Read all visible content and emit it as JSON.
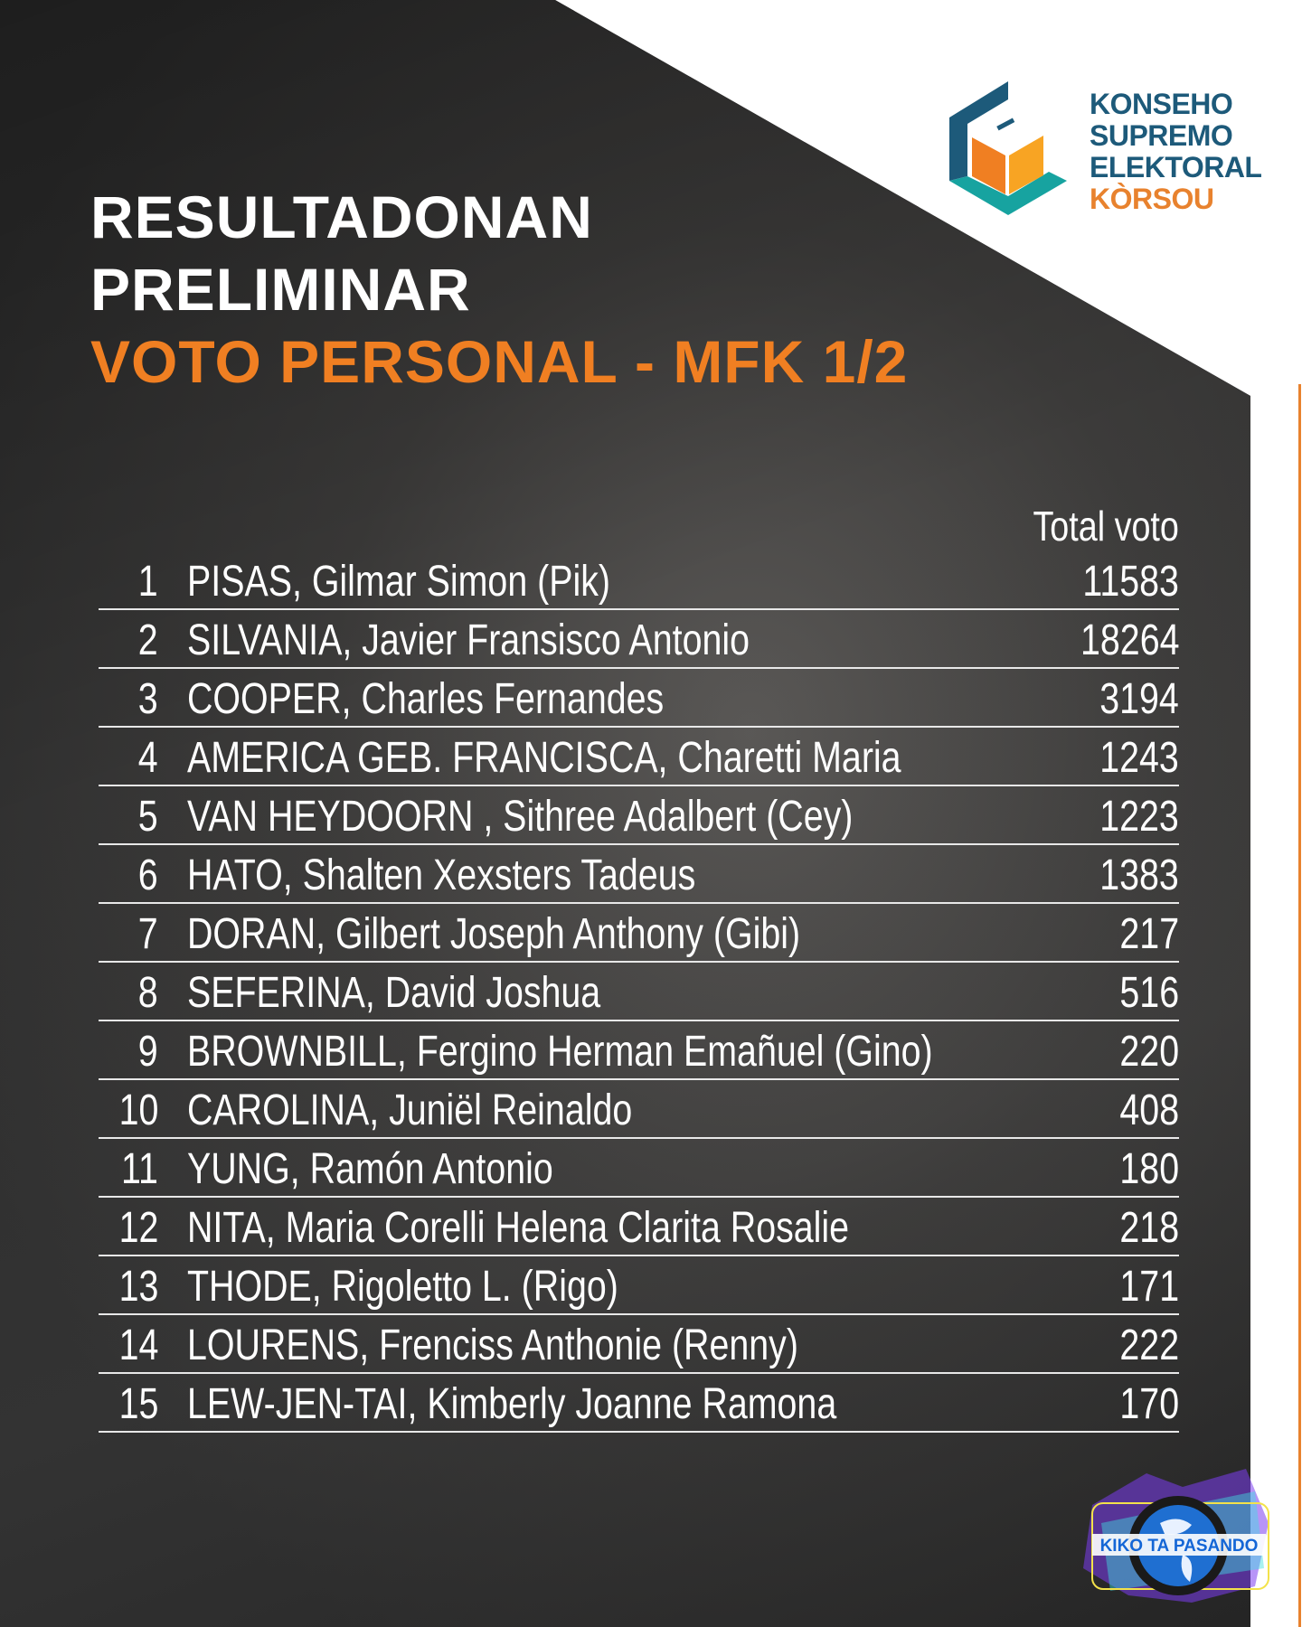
{
  "logo": {
    "lines": [
      "KONSEHO",
      "SUPREMO",
      "ELEKTORAL"
    ],
    "accent_line": "KÒRSOU",
    "colors": {
      "blue": "#1d5a7a",
      "orange": "#e8822e",
      "teal": "#17a3a0"
    }
  },
  "title": {
    "line1": "RESULTADONAN",
    "line2": "PRELIMINAR",
    "line3": "VOTO PERSONAL - MFK 1/2"
  },
  "table": {
    "column_header": "Total voto",
    "rows": [
      {
        "n": "1",
        "name": "PISAS, Gilmar Simon (Pik)",
        "votes": "11583"
      },
      {
        "n": "2",
        "name": "SILVANIA, Javier Fransisco Antonio",
        "votes": "18264"
      },
      {
        "n": "3",
        "name": "COOPER, Charles Fernandes",
        "votes": "3194"
      },
      {
        "n": "4",
        "name": "AMERICA GEB. FRANCISCA, Charetti Maria",
        "votes": "1243"
      },
      {
        "n": "5",
        "name": "VAN HEYDOORN , Sithree Adalbert (Cey)",
        "votes": "1223"
      },
      {
        "n": "6",
        "name": "HATO, Shalten Xexsters Tadeus",
        "votes": "1383"
      },
      {
        "n": "7",
        "name": "DORAN, Gilbert Joseph Anthony (Gibi)",
        "votes": "217"
      },
      {
        "n": "8",
        "name": "SEFERINA, David Joshua",
        "votes": "516"
      },
      {
        "n": "9",
        "name": "BROWNBILL, Fergino Herman Emañuel (Gino)",
        "votes": "220"
      },
      {
        "n": "10",
        "name": "CAROLINA, Juniël Reinaldo",
        "votes": "408"
      },
      {
        "n": "11",
        "name": "YUNG, Ramón Antonio",
        "votes": "180"
      },
      {
        "n": "12",
        "name": "NITA, Maria Corelli Helena Clarita Rosalie",
        "votes": "218"
      },
      {
        "n": "13",
        "name": "THODE, Rigoletto L. (Rigo)",
        "votes": "171"
      },
      {
        "n": "14",
        "name": "LOURENS, Frenciss Anthonie (Renny)",
        "votes": "222"
      },
      {
        "n": "15",
        "name": "LEW-JEN-TAI, Kimberly Joanne Ramona",
        "votes": "170"
      }
    ]
  },
  "watermark": {
    "text": "KIKO TA PASANDO"
  }
}
